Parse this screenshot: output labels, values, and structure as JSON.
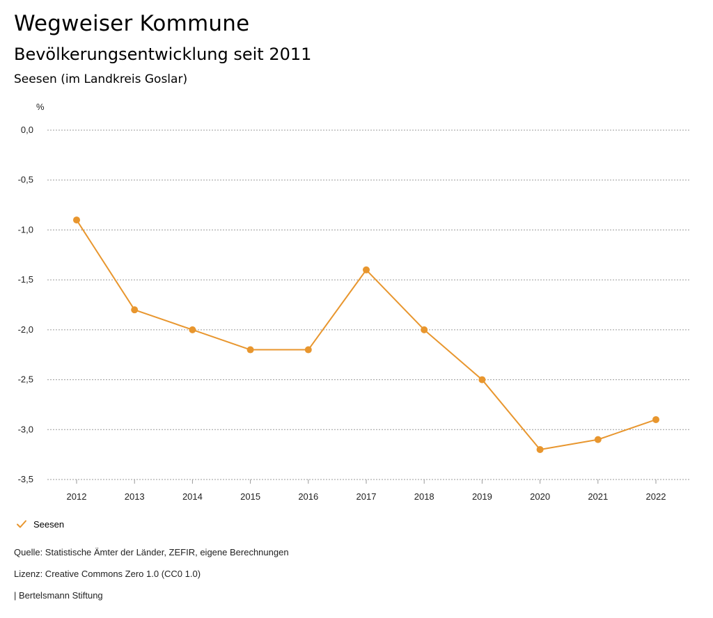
{
  "header": {
    "title": "Wegweiser Kommune",
    "subtitle": "Bevölkerungsentwicklung seit 2011",
    "region": "Seesen (im Landkreis Goslar)"
  },
  "chart_data": {
    "type": "line",
    "unit_label": "%",
    "x": [
      "2012",
      "2013",
      "2014",
      "2015",
      "2016",
      "2017",
      "2018",
      "2019",
      "2020",
      "2021",
      "2022"
    ],
    "series": [
      {
        "name": "Seesen",
        "color": "#e8962e",
        "values": [
          -0.9,
          -1.8,
          -2.0,
          -2.2,
          -2.2,
          -1.4,
          -2.0,
          -2.5,
          -3.2,
          -3.1,
          -2.9
        ]
      }
    ],
    "yticks": [
      "0,0",
      "-0,5",
      "-1,0",
      "-1,5",
      "-2,0",
      "-2,5",
      "-3,0",
      "-3,5"
    ],
    "ytick_values": [
      0,
      -0.5,
      -1.0,
      -1.5,
      -2.0,
      -2.5,
      -3.0,
      -3.5
    ],
    "ylim": [
      -3.5,
      0
    ],
    "grid": true,
    "legend_position": "bottom-left"
  },
  "legend": {
    "label": "Seesen",
    "icon": "checkmark-icon"
  },
  "footer": {
    "source": "Quelle: Statistische Ämter der Länder, ZEFIR, eigene Berechnungen",
    "license": "Lizenz: Creative Commons Zero 1.0 (CC0 1.0)",
    "publisher": "| Bertelsmann Stiftung"
  }
}
